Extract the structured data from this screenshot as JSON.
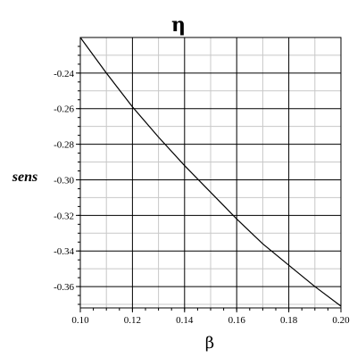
{
  "chart_data": {
    "type": "line",
    "title": "η",
    "xlabel": "β",
    "ylabel": "sens",
    "xlim": [
      0.1,
      0.2
    ],
    "ylim": [
      -0.372,
      -0.22
    ],
    "x_major_ticks": [
      0.1,
      0.12,
      0.14,
      0.16,
      0.18,
      0.2
    ],
    "x_tick_labels": [
      "0.10",
      "0.12",
      "0.14",
      "0.16",
      "0.18",
      "0.20"
    ],
    "y_major_ticks": [
      -0.24,
      -0.26,
      -0.28,
      -0.3,
      -0.32,
      -0.34,
      -0.36
    ],
    "y_tick_labels": [
      "-0.24",
      "-0.26",
      "-0.28",
      "-0.30",
      "-0.32",
      "-0.34",
      "-0.36"
    ],
    "grid": true,
    "series": [
      {
        "x": [
          0.1,
          0.11,
          0.12,
          0.13,
          0.14,
          0.15,
          0.16,
          0.17,
          0.18,
          0.19,
          0.2
        ],
        "y": [
          -0.22,
          -0.24,
          -0.259,
          -0.276,
          -0.292,
          -0.307,
          -0.322,
          -0.336,
          -0.348,
          -0.36,
          -0.371
        ],
        "color": "#000000"
      }
    ]
  }
}
